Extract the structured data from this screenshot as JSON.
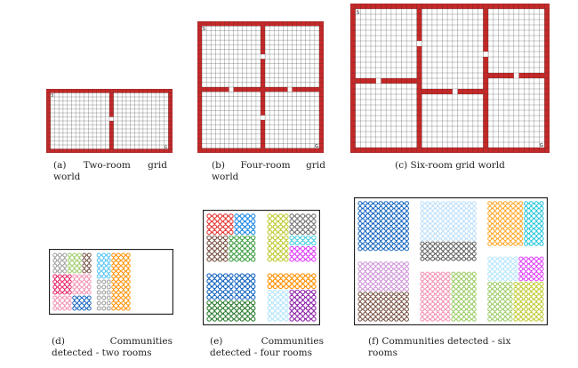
{
  "grid_panels": [
    {
      "id": "a",
      "rows": 14,
      "cols": 28,
      "start_label": "S",
      "goal_label": "G",
      "caption_line1": [
        "(a)",
        "Two-room",
        "grid"
      ],
      "caption_line2": "world",
      "walls": [
        {
          "orient": "v",
          "pos": 14,
          "door": 6
        }
      ]
    },
    {
      "id": "b",
      "rows": 26,
      "cols": 26,
      "start_label": "S",
      "goal_label": "G",
      "caption_line1": [
        "(b)",
        "Four-room",
        "grid"
      ],
      "caption_line2": "world",
      "walls": [
        {
          "orient": "v",
          "pos": 13,
          "from": 0,
          "to": 13,
          "door": 6
        },
        {
          "orient": "v",
          "pos": 13,
          "from": 13,
          "to": 26,
          "door": 19
        },
        {
          "orient": "h",
          "pos": 13,
          "from": 0,
          "to": 13,
          "door": 6
        },
        {
          "orient": "h",
          "pos": 13,
          "from": 13,
          "to": 26,
          "door": 19
        }
      ]
    },
    {
      "id": "c",
      "rows": 26,
      "cols": 37,
      "start_label": "S",
      "goal_label": "G",
      "caption_center": "(c) Six-room grid world",
      "walls": [
        {
          "orient": "v",
          "pos": 12,
          "from": 0,
          "to": 26,
          "door": 6
        },
        {
          "orient": "v",
          "pos": 25,
          "from": 0,
          "to": 26,
          "door": 8
        },
        {
          "orient": "h",
          "pos": 13,
          "from": 0,
          "to": 12,
          "door": 4
        },
        {
          "orient": "h",
          "pos": 15,
          "from": 12,
          "to": 25,
          "door": 19
        },
        {
          "orient": "h",
          "pos": 12,
          "from": 25,
          "to": 37,
          "door": 31
        }
      ]
    }
  ],
  "community_panels": [
    {
      "id": "d",
      "rows": 11,
      "cols": 24,
      "caption_line1": [
        "(d)",
        "Communities"
      ],
      "caption_line2": "detected - two rooms",
      "regions": [
        {
          "c0": 0,
          "c1": 3,
          "r0": 0,
          "r1": 4,
          "color": "#9e9e9e"
        },
        {
          "c0": 3,
          "c1": 6,
          "r0": 0,
          "r1": 4,
          "color": "#9ccc65"
        },
        {
          "c0": 6,
          "c1": 8,
          "r0": 0,
          "r1": 4,
          "color": "#795548"
        },
        {
          "c0": 0,
          "c1": 4,
          "r0": 4,
          "r1": 8,
          "color": "#e91e63"
        },
        {
          "c0": 4,
          "c1": 8,
          "r0": 4,
          "r1": 8,
          "color": "#f48fb1"
        },
        {
          "c0": 0,
          "c1": 4,
          "r0": 8,
          "r1": 11,
          "color": "#f48fb1"
        },
        {
          "c0": 4,
          "c1": 8,
          "r0": 8,
          "r1": 11,
          "color": "#1565c0"
        },
        {
          "c0": 9,
          "c1": 12,
          "r0": 0,
          "r1": 5,
          "color": "#4fc3f7"
        },
        {
          "c0": 9,
          "c1": 12,
          "r0": 5,
          "r1": 11,
          "color": "#ffffff"
        },
        {
          "c0": 12,
          "c1": 16,
          "r0": 0,
          "r1": 11,
          "color": "#ff8f00"
        }
      ]
    },
    {
      "id": "e",
      "rows": 20,
      "cols": 20,
      "caption_line1": [
        "(e)",
        "Communities"
      ],
      "caption_line2": "detected - four rooms",
      "regions": [
        {
          "c0": 0,
          "c1": 5,
          "r0": 0,
          "r1": 4,
          "color": "#e53935"
        },
        {
          "c0": 5,
          "c1": 9,
          "r0": 0,
          "r1": 4,
          "color": "#1e88e5"
        },
        {
          "c0": 0,
          "c1": 4,
          "r0": 4,
          "r1": 9,
          "color": "#795548"
        },
        {
          "c0": 4,
          "c1": 9,
          "r0": 4,
          "r1": 9,
          "color": "#43a047"
        },
        {
          "c0": 11,
          "c1": 15,
          "r0": 0,
          "r1": 4,
          "color": "#c0ca33"
        },
        {
          "c0": 15,
          "c1": 20,
          "r0": 0,
          "r1": 4,
          "color": "#757575"
        },
        {
          "c0": 11,
          "c1": 15,
          "r0": 4,
          "r1": 9,
          "color": "#c0ca33"
        },
        {
          "c0": 15,
          "c1": 20,
          "r0": 4,
          "r1": 6,
          "color": "#4dd0e1"
        },
        {
          "c0": 15,
          "c1": 20,
          "r0": 6,
          "r1": 9,
          "color": "#e040fb"
        },
        {
          "c0": 0,
          "c1": 5,
          "r0": 11,
          "r1": 16,
          "color": "#1565c0"
        },
        {
          "c0": 5,
          "c1": 9,
          "r0": 11,
          "r1": 16,
          "color": "#1565c0"
        },
        {
          "c0": 0,
          "c1": 9,
          "r0": 16,
          "r1": 20,
          "color": "#2e7d32"
        },
        {
          "c0": 11,
          "c1": 20,
          "r0": 11,
          "r1": 14,
          "color": "#ff8f00"
        },
        {
          "c0": 11,
          "c1": 15,
          "r0": 14,
          "r1": 20,
          "color": "#b3e5fc"
        },
        {
          "c0": 15,
          "c1": 20,
          "r0": 14,
          "r1": 20,
          "color": "#8e24aa"
        }
      ]
    },
    {
      "id": "f",
      "rows": 24,
      "cols": 36,
      "caption_center": "(f) Communities detected - six",
      "caption_line2": "rooms",
      "regions": [
        {
          "c0": 0,
          "c1": 10,
          "r0": 0,
          "r1": 10,
          "color": "#1565c0"
        },
        {
          "c0": 12,
          "c1": 23,
          "r0": 0,
          "r1": 8,
          "color": "#bbdefb"
        },
        {
          "c0": 12,
          "c1": 23,
          "r0": 8,
          "r1": 12,
          "color": "#616161"
        },
        {
          "c0": 25,
          "c1": 32,
          "r0": 0,
          "r1": 9,
          "color": "#ffa726"
        },
        {
          "c0": 32,
          "c1": 36,
          "r0": 0,
          "r1": 9,
          "color": "#26c6da"
        },
        {
          "c0": 0,
          "c1": 10,
          "r0": 12,
          "r1": 18,
          "color": "#ce93d8"
        },
        {
          "c0": 0,
          "c1": 10,
          "r0": 18,
          "r1": 24,
          "color": "#795548"
        },
        {
          "c0": 12,
          "c1": 18,
          "r0": 14,
          "r1": 24,
          "color": "#f48fb1"
        },
        {
          "c0": 18,
          "c1": 23,
          "r0": 14,
          "r1": 24,
          "color": "#9ccc65"
        },
        {
          "c0": 25,
          "c1": 31,
          "r0": 11,
          "r1": 16,
          "color": "#b3e5fc"
        },
        {
          "c0": 31,
          "c1": 36,
          "r0": 11,
          "r1": 16,
          "color": "#e040fb"
        },
        {
          "c0": 25,
          "c1": 30,
          "r0": 16,
          "r1": 24,
          "color": "#9ccc65"
        },
        {
          "c0": 30,
          "c1": 36,
          "r0": 16,
          "r1": 24,
          "color": "#c0ca33"
        }
      ]
    }
  ],
  "colors": {
    "wall": "#c62828",
    "gridline": "#666666",
    "frame": "#222222",
    "link": "#4a7fb5"
  }
}
